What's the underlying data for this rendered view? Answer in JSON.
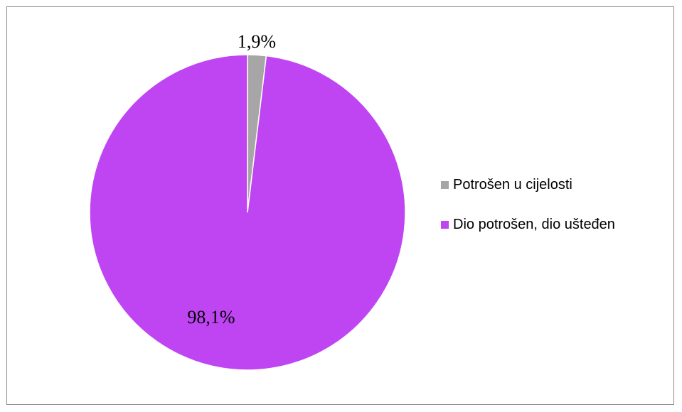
{
  "chart_data": {
    "type": "pie",
    "title": "",
    "start_angle_deg": 0,
    "direction": "clockwise",
    "legend_position": "right",
    "slices": [
      {
        "label": "Potrošen u cijelosti",
        "value": 1.9,
        "value_label": "1,9%",
        "color": "#a6a6a6"
      },
      {
        "label": "Dio potrošen, dio uštеđen",
        "value": 98.1,
        "value_label": "98,1%",
        "color": "#bf45f2"
      }
    ]
  }
}
